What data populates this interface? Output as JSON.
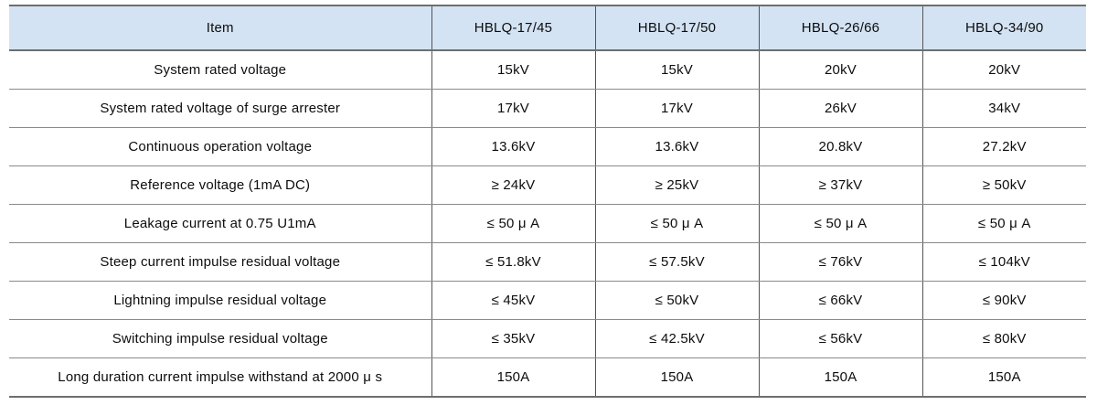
{
  "table": {
    "colors": {
      "header_bg": "#d3e3f3",
      "grid_line": "#8a8a8a",
      "heavy_line": "#6e6e6e",
      "vertical_line": "#555555",
      "text": "#0d0d0d",
      "background": "#ffffff"
    },
    "columns": [
      "Item",
      "HBLQ-17/45",
      "HBLQ-17/50",
      "HBLQ-26/66",
      "HBLQ-34/90"
    ],
    "rows": [
      {
        "item": "System rated voltage",
        "values": [
          "15kV",
          "15kV",
          "20kV",
          "20kV"
        ]
      },
      {
        "item": "System rated voltage of surge arrester",
        "values": [
          "17kV",
          "17kV",
          "26kV",
          "34kV"
        ]
      },
      {
        "item": "Continuous operation voltage",
        "values": [
          "13.6kV",
          "13.6kV",
          "20.8kV",
          "27.2kV"
        ]
      },
      {
        "item": "Reference voltage (1mA DC)",
        "values": [
          "≥ 24kV",
          "≥ 25kV",
          "≥ 37kV",
          "≥ 50kV"
        ]
      },
      {
        "item": "Leakage current at 0.75 U1mA",
        "values": [
          "≤ 50 μ A",
          "≤ 50 μ A",
          "≤ 50 μ A",
          "≤ 50 μ A"
        ]
      },
      {
        "item": "Steep current impulse residual voltage",
        "values": [
          "≤ 51.8kV",
          "≤ 57.5kV",
          "≤ 76kV",
          "≤ 104kV"
        ]
      },
      {
        "item": "Lightning impulse residual voltage",
        "values": [
          "≤ 45kV",
          "≤ 50kV",
          "≤ 66kV",
          "≤ 90kV"
        ]
      },
      {
        "item": "Switching impulse residual voltage",
        "values": [
          "≤ 35kV",
          "≤ 42.5kV",
          "≤ 56kV",
          "≤ 80kV"
        ]
      },
      {
        "item": "Long duration current impulse withstand at 2000 μ s",
        "values": [
          "150A",
          "150A",
          "150A",
          "150A"
        ]
      }
    ]
  }
}
